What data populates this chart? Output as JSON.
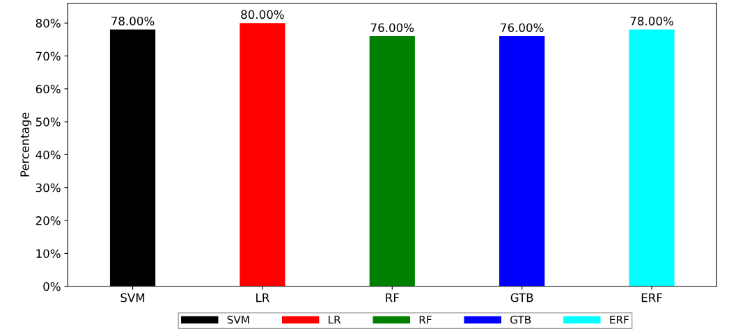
{
  "chart_data": {
    "type": "bar",
    "ylabel": "Percentage",
    "categories": [
      "SVM",
      "LR",
      "RF",
      "GTB",
      "ERF"
    ],
    "series": [
      {
        "name": "SVM",
        "color": "#000000",
        "values": [
          78,
          null,
          null,
          null,
          null
        ],
        "value_labels": [
          "78.00%",
          null,
          null,
          null,
          null
        ]
      },
      {
        "name": "LR",
        "color": "#ff0000",
        "values": [
          null,
          80,
          null,
          null,
          null
        ],
        "value_labels": [
          null,
          "80.00%",
          null,
          null,
          null
        ]
      },
      {
        "name": "RF",
        "color": "#008000",
        "values": [
          null,
          null,
          76,
          null,
          null
        ],
        "value_labels": [
          null,
          null,
          "76.00%",
          null,
          null
        ]
      },
      {
        "name": "GTB",
        "color": "#0000ff",
        "values": [
          null,
          null,
          null,
          76,
          null
        ],
        "value_labels": [
          null,
          null,
          null,
          "76.00%",
          null
        ]
      },
      {
        "name": "ERF",
        "color": "#00ffff",
        "values": [
          null,
          null,
          null,
          null,
          78
        ],
        "value_labels": [
          null,
          null,
          null,
          null,
          "78.00%"
        ]
      }
    ],
    "ylim": [
      0,
      86
    ],
    "yticks": [
      {
        "value": 0,
        "label": "0%"
      },
      {
        "value": 10,
        "label": "10%"
      },
      {
        "value": 20,
        "label": "20%"
      },
      {
        "value": 30,
        "label": "30%"
      },
      {
        "value": 40,
        "label": "40%"
      },
      {
        "value": 50,
        "label": "50%"
      },
      {
        "value": 60,
        "label": "60%"
      },
      {
        "value": 70,
        "label": "70%"
      },
      {
        "value": 80,
        "label": "80%"
      }
    ],
    "legend": "bottom",
    "grid": false
  }
}
